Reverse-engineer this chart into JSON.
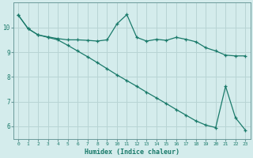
{
  "xlabel": "Humidex (Indice chaleur)",
  "ylabel": "",
  "background_color": "#d4ecec",
  "grid_color": "#b8d4d4",
  "line_color": "#1a7a6a",
  "spine_color": "#6a9a9a",
  "xmin": 0,
  "xmax": 23,
  "ymin": 5.5,
  "ymax": 11.0,
  "yticks": [
    6,
    7,
    8,
    9,
    10
  ],
  "xticks": [
    0,
    1,
    2,
    3,
    4,
    5,
    6,
    7,
    8,
    9,
    10,
    11,
    12,
    13,
    14,
    15,
    16,
    17,
    18,
    19,
    20,
    21,
    22,
    23
  ],
  "line1_x": [
    0,
    1,
    2,
    3,
    4,
    5,
    6,
    7,
    8,
    9,
    10,
    11,
    12,
    13,
    14,
    15,
    16,
    17,
    18,
    19,
    20,
    21,
    22,
    23
  ],
  "line1_y": [
    10.5,
    9.95,
    9.7,
    9.62,
    9.55,
    9.5,
    9.5,
    9.48,
    9.45,
    9.5,
    10.15,
    10.52,
    9.6,
    9.45,
    9.52,
    9.48,
    9.6,
    9.52,
    9.42,
    9.18,
    9.05,
    8.88,
    8.85,
    8.85
  ],
  "line2_x": [
    0,
    1,
    2,
    3,
    4,
    5,
    6,
    7,
    8,
    9,
    10,
    11,
    12,
    13,
    14,
    15,
    16,
    17,
    18,
    19,
    20,
    21,
    22,
    23
  ],
  "line2_y": [
    10.5,
    9.95,
    9.7,
    9.6,
    9.5,
    9.28,
    9.05,
    8.82,
    8.58,
    8.33,
    8.08,
    7.85,
    7.62,
    7.38,
    7.15,
    6.92,
    6.68,
    6.45,
    6.22,
    6.05,
    5.95,
    7.62,
    6.35,
    5.85
  ]
}
